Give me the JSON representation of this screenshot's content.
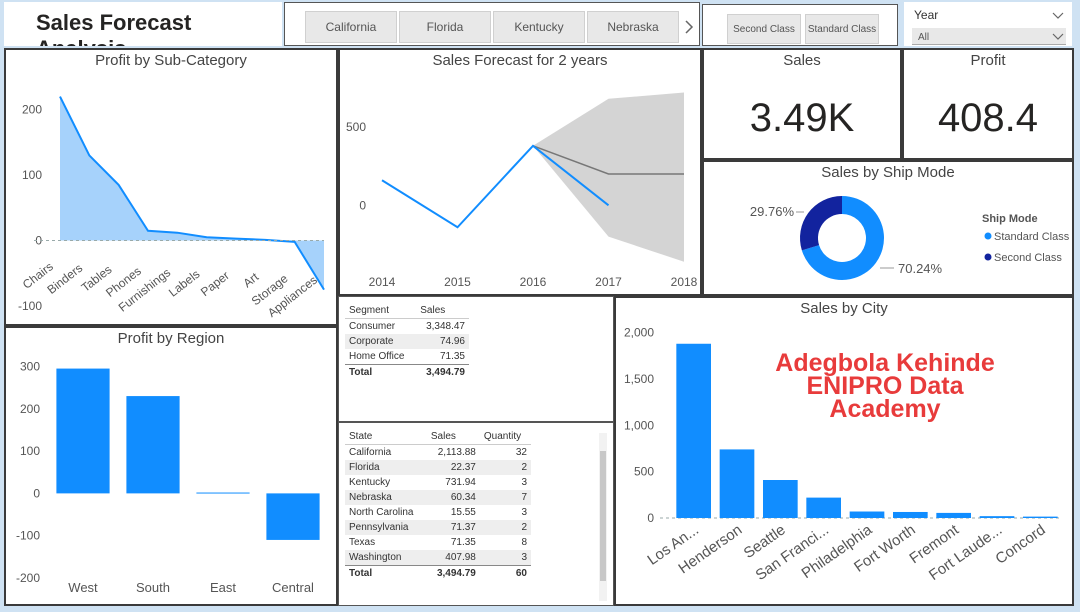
{
  "header": {
    "title": "Sales Forecast Analysis"
  },
  "state_slicer": {
    "items": [
      "California",
      "Florida",
      "Kentucky",
      "Nebraska"
    ],
    "next_icon": "chevron-right-icon"
  },
  "ship_slicer": {
    "items": [
      "Second Class",
      "Standard Class"
    ]
  },
  "year_slicer": {
    "label": "Year",
    "value": "All"
  },
  "kpis": {
    "sales": {
      "label": "Sales",
      "value": "3.49K"
    },
    "profit": {
      "label": "Profit",
      "value": "408.4"
    }
  },
  "colors": {
    "accent": "#118dff",
    "area": "#a6d2fb",
    "dark": "#12239e",
    "forecast_band": "#d4d4d4"
  },
  "chart_data": [
    {
      "id": "profit_by_subcategory",
      "type": "area",
      "title": "Profit by Sub-Category",
      "categories": [
        "Chairs",
        "Binders",
        "Tables",
        "Phones",
        "Furnishings",
        "Labels",
        "Paper",
        "Art",
        "Storage",
        "Appliances"
      ],
      "values": [
        220,
        130,
        85,
        15,
        12,
        5,
        3,
        1,
        -2,
        -75
      ],
      "ylim": [
        -100,
        230
      ],
      "yticks": [
        -100,
        0,
        100,
        200
      ]
    },
    {
      "id": "sales_forecast",
      "type": "line",
      "title": "Sales Forecast for 2 years",
      "x": [
        2014,
        2015,
        2016,
        2017,
        2018
      ],
      "actual": {
        "x": [
          2014,
          2015,
          2016,
          2017
        ],
        "y": [
          160,
          -140,
          380,
          0
        ]
      },
      "forecast": {
        "x": [
          2016,
          2017,
          2018
        ],
        "y": [
          380,
          200,
          200
        ]
      },
      "band_upper": [
        380,
        680,
        720
      ],
      "band_lower": [
        380,
        -200,
        -360
      ],
      "yticks": [
        0,
        500
      ],
      "ylim": [
        -400,
        800
      ]
    },
    {
      "id": "sales_by_ship_mode",
      "type": "pie",
      "title": "Sales by Ship Mode",
      "legend_title": "Ship Mode",
      "slices": [
        {
          "name": "Standard Class",
          "value": 70.24,
          "label": "70.24%"
        },
        {
          "name": "Second Class",
          "value": 29.76,
          "label": "29.76%"
        }
      ]
    },
    {
      "id": "profit_by_region",
      "type": "bar",
      "title": "Profit by Region",
      "categories": [
        "West",
        "South",
        "East",
        "Central"
      ],
      "values": [
        295,
        230,
        2,
        -110
      ],
      "ylim": [
        -200,
        320
      ],
      "yticks": [
        -200,
        -100,
        0,
        100,
        200,
        300
      ]
    },
    {
      "id": "sales_by_city",
      "type": "bar",
      "title": "Sales by City",
      "categories": [
        "Los An...",
        "Henderson",
        "Seattle",
        "San Franci...",
        "Philadelphia",
        "Fort Worth",
        "Fremont",
        "Fort Laude...",
        "Concord"
      ],
      "values": [
        1880,
        740,
        410,
        220,
        70,
        65,
        55,
        20,
        15
      ],
      "ylim": [
        0,
        2050
      ],
      "yticks": [
        0,
        500,
        1000,
        1500,
        2000
      ],
      "ytick_labels": [
        "0",
        "500",
        "1,000",
        "1,500",
        "2,000"
      ]
    }
  ],
  "segment_table": {
    "headers": [
      "Segment",
      "Sales"
    ],
    "rows": [
      [
        "Consumer",
        "3,348.47"
      ],
      [
        "Corporate",
        "74.96"
      ],
      [
        "Home Office",
        "71.35"
      ]
    ],
    "total": [
      "Total",
      "3,494.79"
    ]
  },
  "state_table": {
    "headers": [
      "State",
      "Sales",
      "Quantity"
    ],
    "rows": [
      [
        "California",
        "2,113.88",
        "32"
      ],
      [
        "Florida",
        "22.37",
        "2"
      ],
      [
        "Kentucky",
        "731.94",
        "3"
      ],
      [
        "Nebraska",
        "60.34",
        "7"
      ],
      [
        "North Carolina",
        "15.55",
        "3"
      ],
      [
        "Pennsylvania",
        "71.37",
        "2"
      ],
      [
        "Texas",
        "71.35",
        "8"
      ],
      [
        "Washington",
        "407.98",
        "3"
      ]
    ],
    "total": [
      "Total",
      "3,494.79",
      "60"
    ]
  },
  "watermark": {
    "lines": [
      "Adegbola Kehinde",
      "ENIPRO Data",
      "Academy"
    ]
  }
}
